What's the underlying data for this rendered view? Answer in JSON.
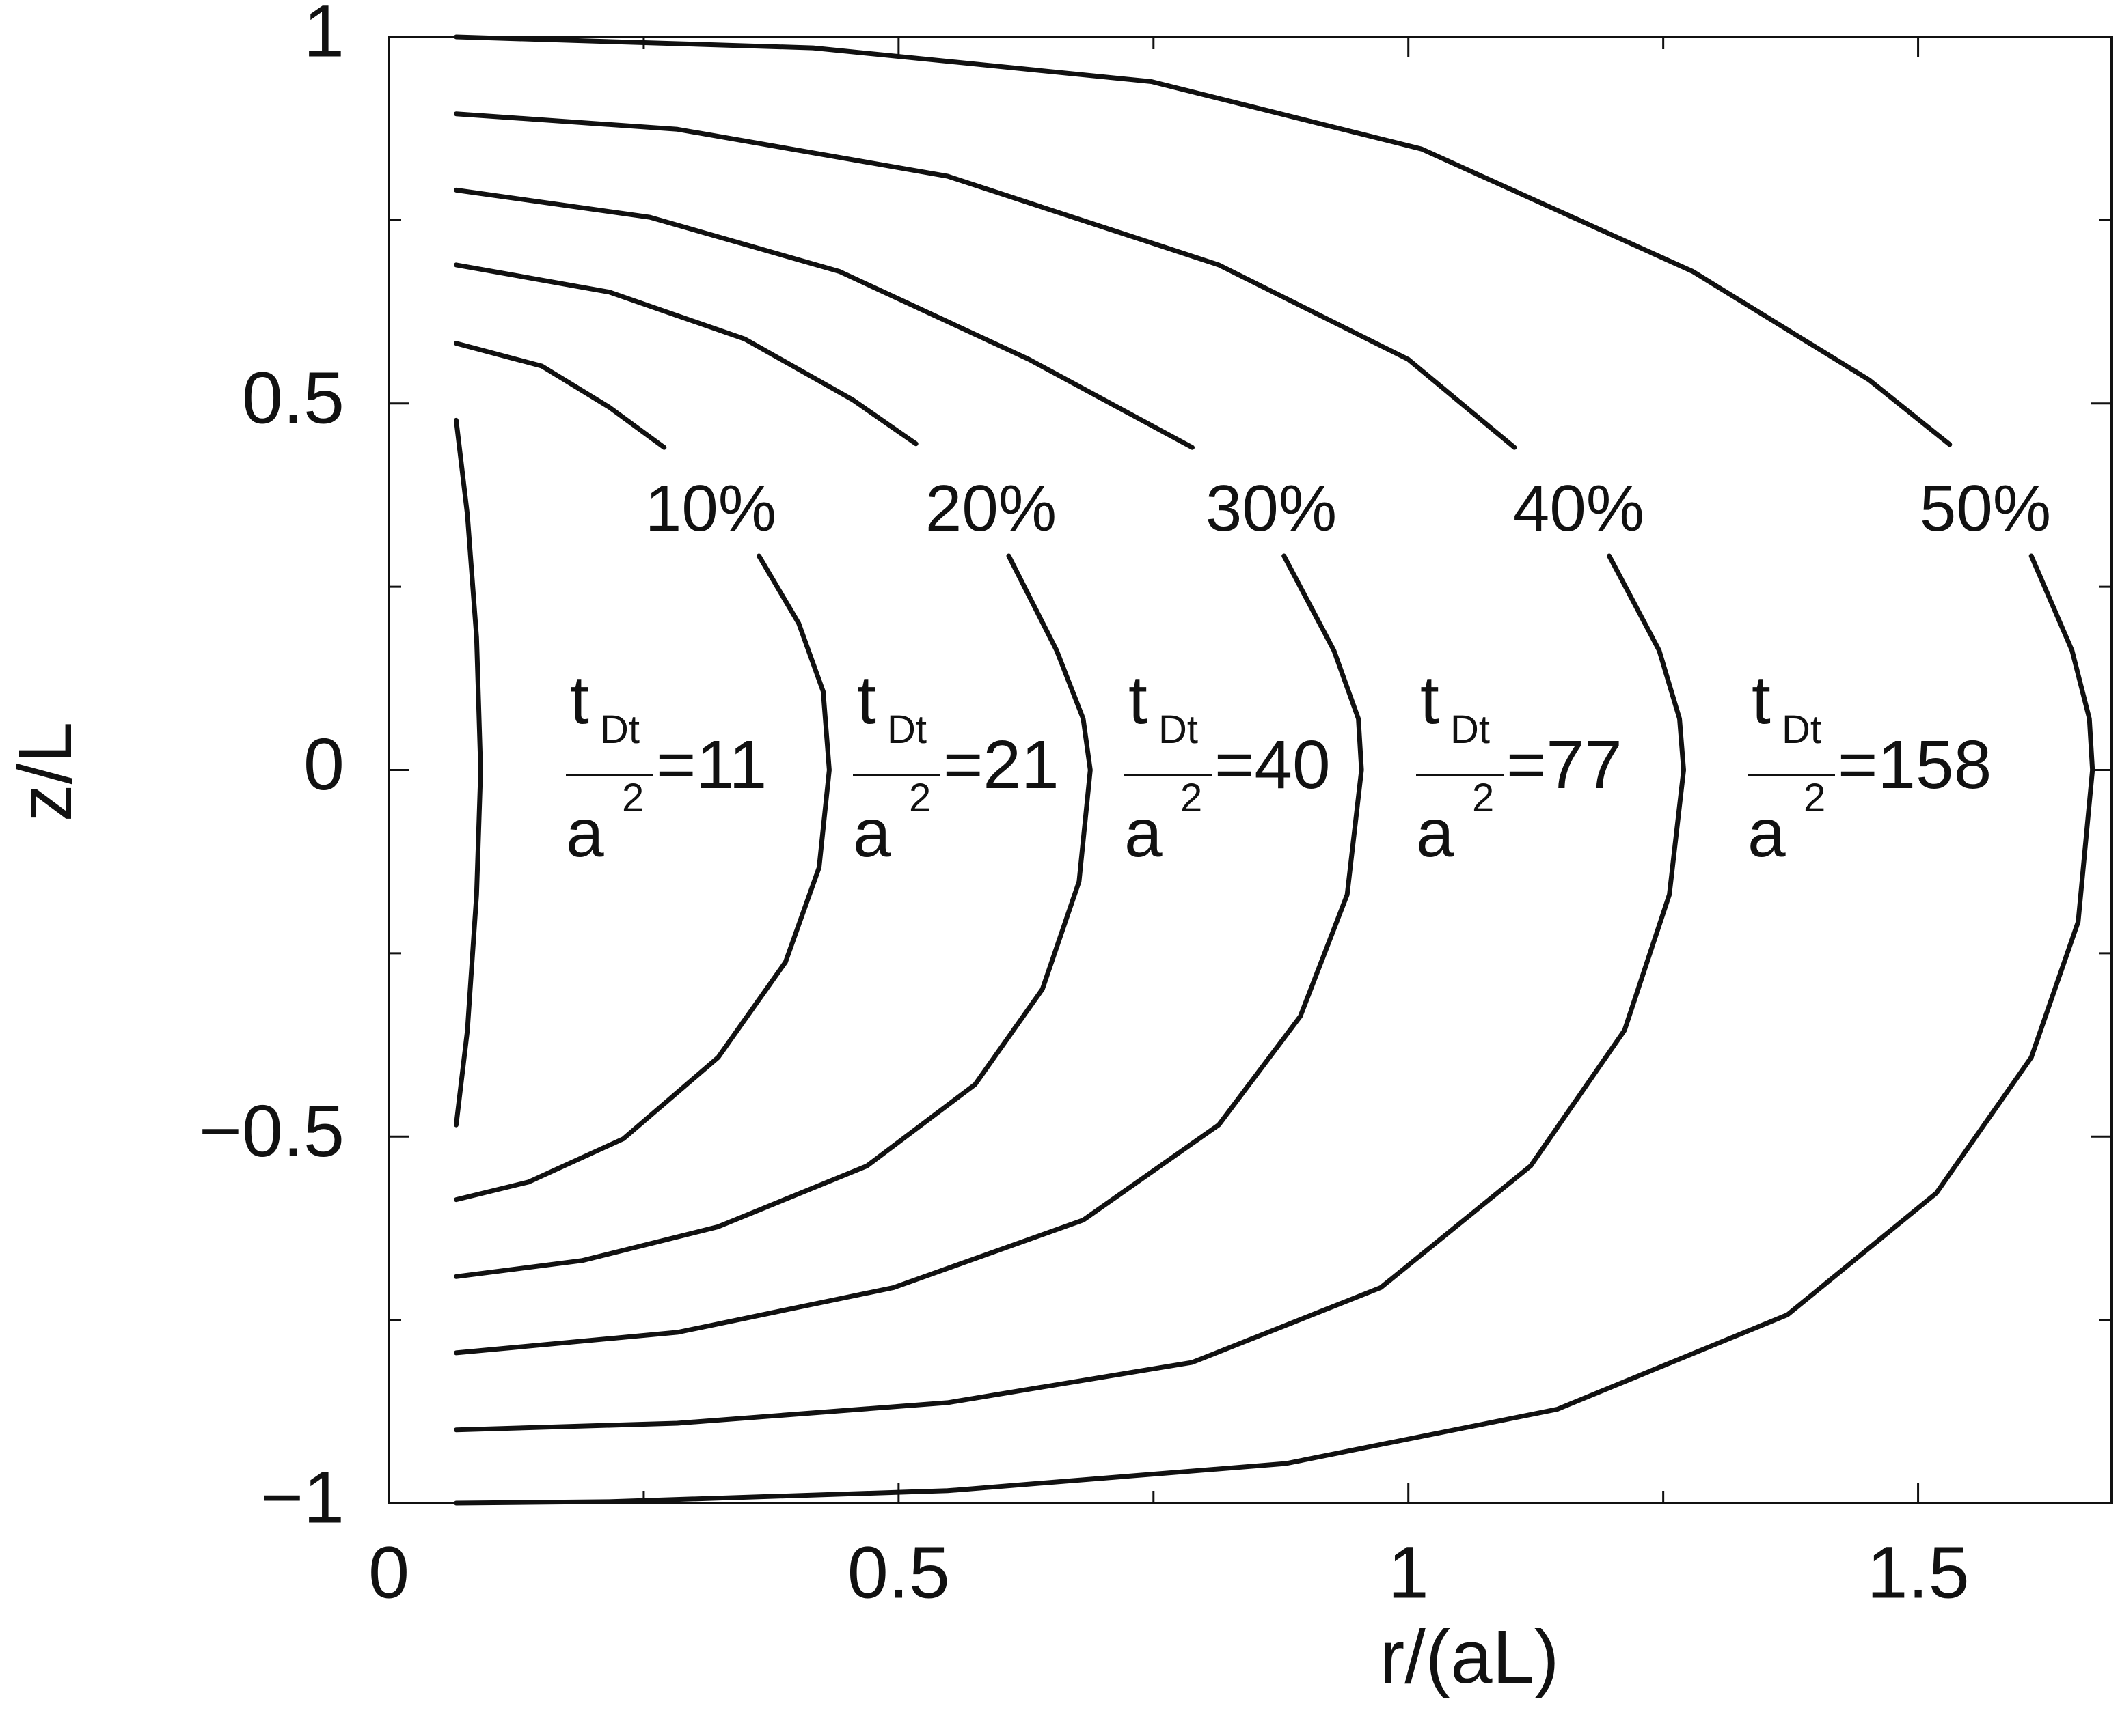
{
  "chart_data": {
    "type": "line",
    "x_label": "r/(aL)",
    "y_label": "z/L",
    "xlim": [
      0,
      1.69
    ],
    "ylim": [
      -1,
      1
    ],
    "xticks": [
      0,
      0.5,
      1,
      1.5
    ],
    "yticks": [
      {
        "value": -1,
        "label": "−1"
      },
      {
        "value": -0.5,
        "label": "−0.5"
      },
      0,
      0.5,
      1
    ],
    "xminorticks": [
      0.25,
      0.75,
      1.25
    ],
    "yminorticks": [
      -0.75,
      -0.25,
      0.25,
      0.75
    ],
    "color": "#111111",
    "series": [
      {
        "x": [
          0.066,
          0.077,
          0.086,
          0.09,
          0.086,
          0.077,
          0.066
        ],
        "values": [
          0.477,
          0.348,
          0.181,
          0,
          -0.17,
          -0.355,
          -0.484
        ]
      },
      {
        "label": "10%",
        "t": "t",
        "sub": "Dt",
        "a": "a",
        "sup": "2",
        "eq": "=11",
        "x": [
          0.066,
          0.15,
          0.216,
          0.27,
          null,
          0.363,
          0.402,
          0.426,
          0.432,
          0.422,
          0.389,
          0.323,
          0.23,
          0.137,
          0.066
        ],
        "values": [
          0.582,
          0.551,
          0.495,
          0.44,
          null,
          0.292,
          0.2,
          0.107,
          0,
          -0.133,
          -0.262,
          -0.392,
          -0.503,
          -0.562,
          -0.586
        ]
      },
      {
        "label": "20%",
        "t": "t",
        "sub": "Dt",
        "a": "a",
        "sup": "2",
        "eq": "=21",
        "x": [
          0.066,
          0.216,
          0.349,
          0.455,
          0.517,
          null,
          0.608,
          0.655,
          0.681,
          0.688,
          0.677,
          0.641,
          0.575,
          0.469,
          0.323,
          0.19,
          0.066
        ],
        "values": [
          0.689,
          0.652,
          0.588,
          0.505,
          0.445,
          null,
          0.292,
          0.163,
          0.07,
          0,
          -0.152,
          -0.299,
          -0.429,
          -0.54,
          -0.623,
          -0.669,
          -0.691
        ]
      },
      {
        "label": "30%",
        "t": "t",
        "sub": "Dt",
        "a": "a",
        "sup": "2",
        "eq": "=40",
        "x": [
          0.066,
          0.256,
          0.442,
          0.628,
          0.788,
          null,
          0.878,
          0.927,
          0.951,
          0.954,
          0.94,
          0.894,
          0.814,
          0.681,
          0.495,
          0.283,
          0.066
        ],
        "values": [
          0.791,
          0.754,
          0.68,
          0.56,
          0.44,
          null,
          0.292,
          0.163,
          0.07,
          0,
          -0.17,
          -0.336,
          -0.484,
          -0.614,
          -0.706,
          -0.767,
          -0.795
        ]
      },
      {
        "label": "40%",
        "t": "t",
        "sub": "Dt",
        "a": "a",
        "sup": "2",
        "eq": "=77",
        "x": [
          0.066,
          0.283,
          0.548,
          0.814,
          1.0,
          1.104,
          null,
          1.197,
          1.246,
          1.266,
          1.27,
          1.256,
          1.212,
          1.12,
          0.973,
          0.788,
          0.548,
          0.283,
          0.066
        ],
        "values": [
          0.895,
          0.874,
          0.81,
          0.689,
          0.56,
          0.44,
          null,
          0.292,
          0.163,
          0.07,
          0,
          -0.17,
          -0.355,
          -0.54,
          -0.706,
          -0.808,
          -0.863,
          -0.891,
          -0.9
        ]
      },
      {
        "label": "50%",
        "t": "t",
        "sub": "Dt",
        "a": "a",
        "sup": "2",
        "eq": "=158",
        "x": [
          0.066,
          0.416,
          0.748,
          1.013,
          1.279,
          1.452,
          1.531,
          null,
          1.611,
          1.651,
          1.668,
          1.671,
          1.657,
          1.611,
          1.518,
          1.372,
          1.146,
          0.88,
          0.548,
          0.216,
          0.066
        ],
        "values": [
          1.0,
          0.985,
          0.939,
          0.847,
          0.68,
          0.532,
          0.444,
          null,
          0.292,
          0.163,
          0.07,
          0,
          -0.207,
          -0.392,
          -0.577,
          -0.743,
          -0.872,
          -0.946,
          -0.983,
          -0.998,
          -1.0
        ]
      }
    ]
  }
}
